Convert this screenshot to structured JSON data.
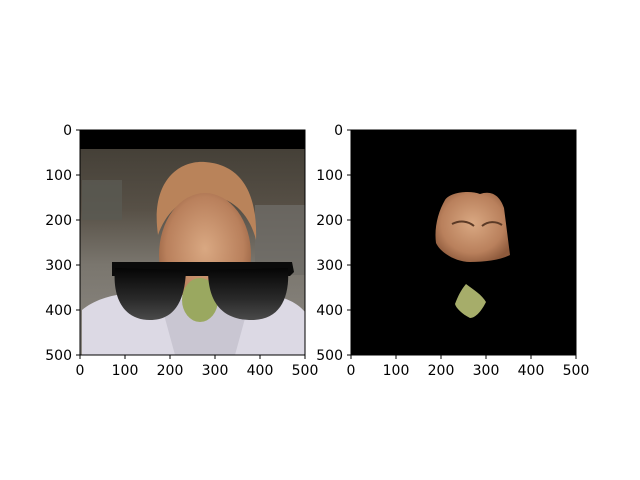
{
  "chart_data": [
    {
      "type": "image",
      "title": "",
      "xlabel": "",
      "ylabel": "",
      "xlim": [
        0,
        500
      ],
      "ylim": [
        500,
        0
      ],
      "xticks": [
        0,
        100,
        200,
        300,
        400,
        500
      ],
      "yticks": [
        0,
        100,
        200,
        300,
        400,
        500
      ],
      "grid": false,
      "content": "photo-with-sunglasses-overlay"
    },
    {
      "type": "image",
      "title": "",
      "xlabel": "",
      "ylabel": "",
      "xlim": [
        0,
        500
      ],
      "ylim": [
        500,
        0
      ],
      "xticks": [
        0,
        100,
        200,
        300,
        400,
        500
      ],
      "yticks": [
        0,
        100,
        200,
        300,
        400,
        500
      ],
      "grid": false,
      "content": "masked-face-regions-on-black"
    }
  ]
}
